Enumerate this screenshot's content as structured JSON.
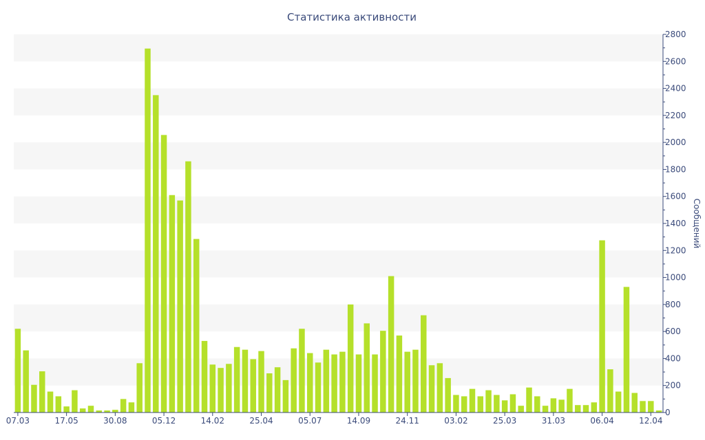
{
  "chart_data": {
    "type": "bar",
    "title": "Статистика активности",
    "xlabel": "",
    "ylabel": "Сообщений",
    "ylim": [
      0,
      2800
    ],
    "y_ticks": [
      0,
      200,
      400,
      600,
      800,
      1000,
      1200,
      1400,
      1600,
      1800,
      2000,
      2200,
      2400,
      2600,
      2800
    ],
    "y_axis_side": "right",
    "grid": "alternating horizontal bands",
    "bar_color": "#b5e02a",
    "x_tick_labels": [
      {
        "index": 0,
        "label": "07.03"
      },
      {
        "index": 6,
        "label": "17.05"
      },
      {
        "index": 12,
        "label": "30.08"
      },
      {
        "index": 18,
        "label": "05.12"
      },
      {
        "index": 24,
        "label": "14.02"
      },
      {
        "index": 30,
        "label": "25.04"
      },
      {
        "index": 36,
        "label": "05.07"
      },
      {
        "index": 42,
        "label": "14.09"
      },
      {
        "index": 48,
        "label": "24.11"
      },
      {
        "index": 54,
        "label": "03.02"
      },
      {
        "index": 60,
        "label": "25.03"
      },
      {
        "index": 66,
        "label": "31.03"
      },
      {
        "index": 72,
        "label": "06.04"
      },
      {
        "index": 78,
        "label": "12.04"
      }
    ],
    "values": [
      620,
      460,
      205,
      305,
      155,
      120,
      45,
      165,
      30,
      50,
      15,
      15,
      20,
      100,
      75,
      365,
      2695,
      2350,
      2055,
      1610,
      1570,
      1860,
      1285,
      530,
      355,
      330,
      360,
      485,
      465,
      395,
      455,
      290,
      335,
      240,
      475,
      620,
      440,
      370,
      465,
      430,
      450,
      800,
      430,
      660,
      430,
      605,
      1010,
      570,
      450,
      465,
      720,
      350,
      365,
      255,
      130,
      120,
      175,
      120,
      165,
      130,
      90,
      135,
      50,
      185,
      120,
      50,
      105,
      95,
      175,
      55,
      55,
      75,
      1275,
      320,
      155,
      930,
      145,
      85,
      85,
      15
    ]
  }
}
